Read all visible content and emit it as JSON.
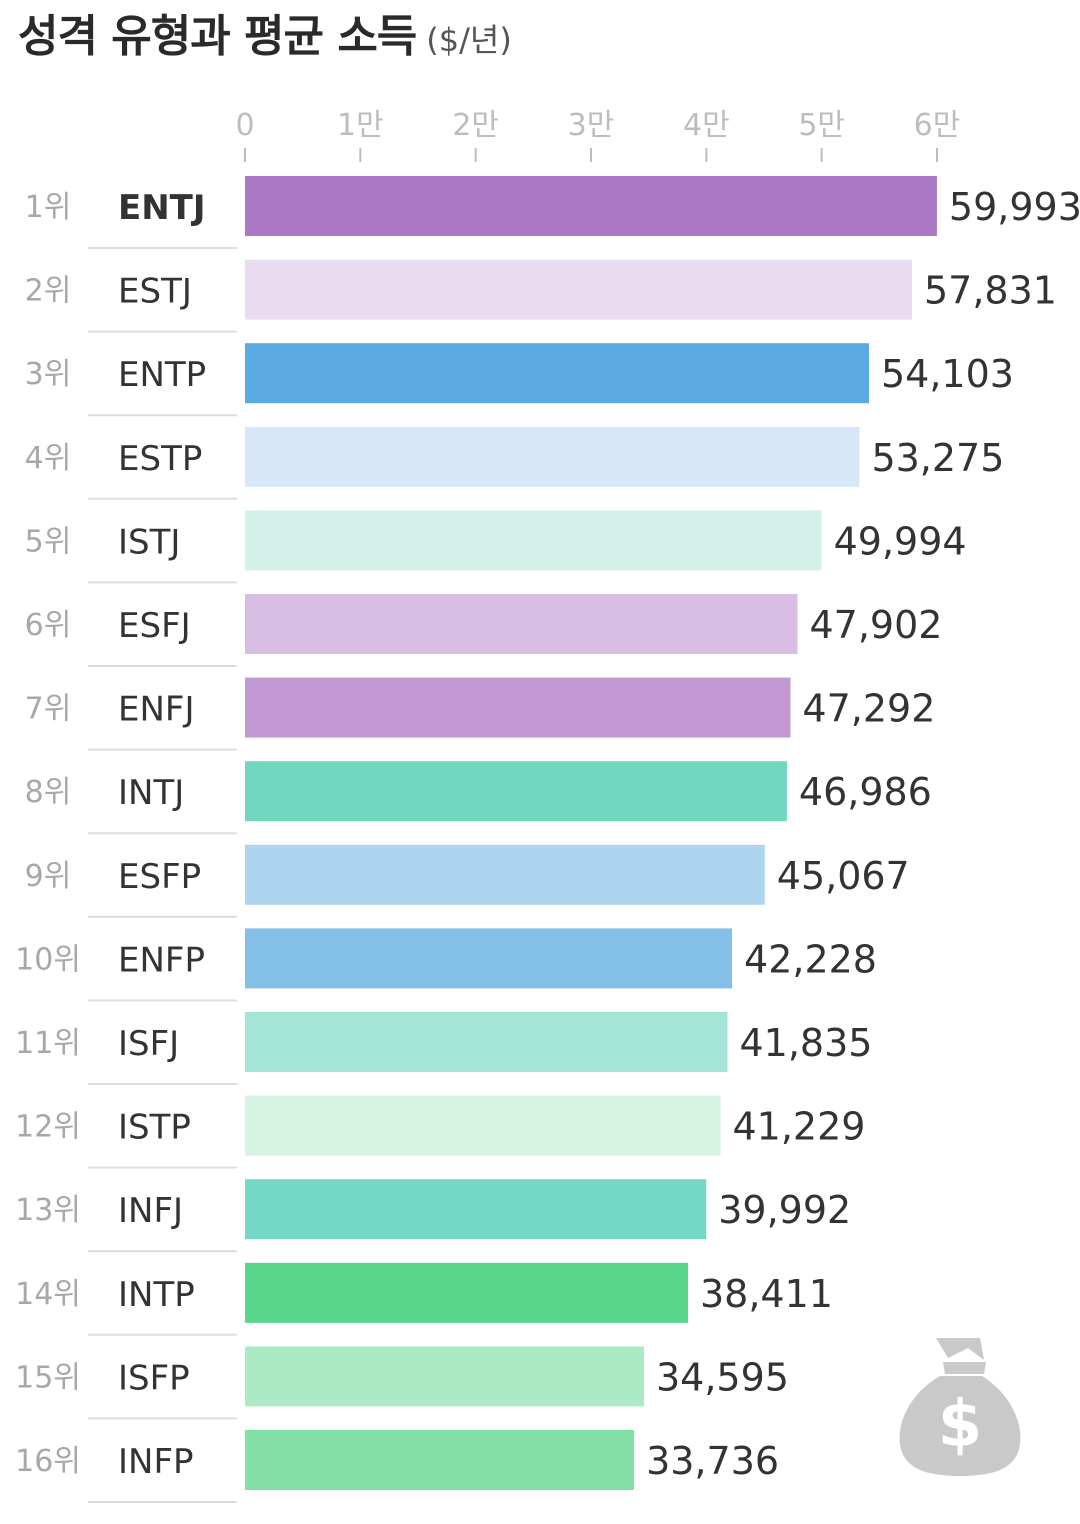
{
  "title": "성격 유형과 평균 소득",
  "unit": "($/년)",
  "colors": {
    "highlight": "#a874c4",
    "tick": "#bdbdbd",
    "rank": "#a8a8a8",
    "text": "#333333",
    "separator": "#dddddd",
    "icon": "#c9c9c9"
  },
  "icon": "money-bag-icon",
  "chart_data": {
    "type": "bar",
    "orientation": "horizontal",
    "xlim": [
      0,
      60000
    ],
    "ticks": [
      {
        "value": 0,
        "label": "0"
      },
      {
        "value": 10000,
        "label": "1만"
      },
      {
        "value": 20000,
        "label": "2만"
      },
      {
        "value": 30000,
        "label": "3만"
      },
      {
        "value": 40000,
        "label": "4만"
      },
      {
        "value": 50000,
        "label": "5만"
      },
      {
        "value": 60000,
        "label": "6만"
      }
    ],
    "bars": [
      {
        "rank": "1위",
        "type": "ENTJ",
        "value": 59993,
        "label": "59,993",
        "color": "#ab78c5",
        "highlight": true
      },
      {
        "rank": "2위",
        "type": "ESTJ",
        "value": 57831,
        "label": "57,831",
        "color": "#eadcf0",
        "highlight": false
      },
      {
        "rank": "3위",
        "type": "ENTP",
        "value": 54103,
        "label": "54,103",
        "color": "#5aa9e2",
        "highlight": false
      },
      {
        "rank": "4위",
        "type": "ESTP",
        "value": 53275,
        "label": "53,275",
        "color": "#d6e8f7",
        "highlight": false
      },
      {
        "rank": "5위",
        "type": "ISTJ",
        "value": 49994,
        "label": "49,994",
        "color": "#d3f1e9",
        "highlight": false
      },
      {
        "rank": "6위",
        "type": "ESFJ",
        "value": 47902,
        "label": "47,902",
        "color": "#d7bde3",
        "highlight": false
      },
      {
        "rank": "7위",
        "type": "ENFJ",
        "value": 47292,
        "label": "47,292",
        "color": "#c299d3",
        "highlight": false
      },
      {
        "rank": "8위",
        "type": "INTJ",
        "value": 46986,
        "label": "46,986",
        "color": "#72d6c1",
        "highlight": false
      },
      {
        "rank": "9위",
        "type": "ESFP",
        "value": 45067,
        "label": "45,067",
        "color": "#aed5f0",
        "highlight": false
      },
      {
        "rank": "10위",
        "type": "ENFP",
        "value": 42228,
        "label": "42,228",
        "color": "#84bfe8",
        "highlight": false
      },
      {
        "rank": "11위",
        "type": "ISFJ",
        "value": 41835,
        "label": "41,835",
        "color": "#a4e5d6",
        "highlight": false
      },
      {
        "rank": "12위",
        "type": "ISTP",
        "value": 41229,
        "label": "41,229",
        "color": "#d5f4e4",
        "highlight": false
      },
      {
        "rank": "13위",
        "type": "INFJ",
        "value": 39992,
        "label": "39,992",
        "color": "#75d8c4",
        "highlight": false
      },
      {
        "rank": "14위",
        "type": "INTP",
        "value": 38411,
        "label": "38,411",
        "color": "#57d68c",
        "highlight": false
      },
      {
        "rank": "15위",
        "type": "ISFP",
        "value": 34595,
        "label": "34,595",
        "color": "#abebc3",
        "highlight": false
      },
      {
        "rank": "16위",
        "type": "INFP",
        "value": 33736,
        "label": "33,736",
        "color": "#83e0a6",
        "highlight": false
      }
    ]
  }
}
